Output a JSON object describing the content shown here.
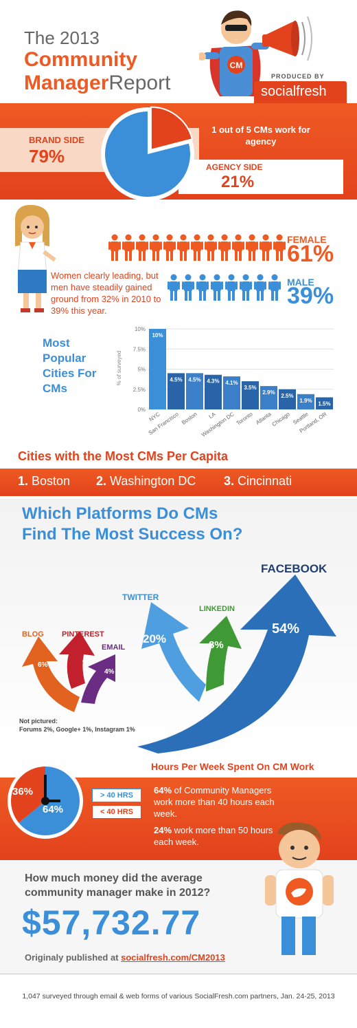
{
  "header": {
    "line1": "The 2013",
    "line2": "Community",
    "line3a": "Manager",
    "line3b": "Report",
    "produced_by": "PRODUCED BY",
    "brand": "socialfresh",
    "cape_badge": "CM"
  },
  "agency": {
    "brand_label": "BRAND SIDE",
    "brand_value": "79%",
    "note": "1 out of 5 CMs work for agency",
    "agency_label": "AGENCY SIDE",
    "agency_value": "21%"
  },
  "gender": {
    "female_label": "FEMALE",
    "female_value": "61%",
    "male_label": "MALE",
    "male_value": "39%",
    "quote": "Women clearly leading, but men have steadily gained ground from 32% in 2010 to 39% this year."
  },
  "cities_chart_title": "Most Popular Cities For CMs",
  "per_capita": {
    "title": "Cities with the Most CMs Per Capita",
    "items": [
      {
        "rank": "1.",
        "city": "Boston"
      },
      {
        "rank": "2.",
        "city": "Washington DC"
      },
      {
        "rank": "3.",
        "city": "Cincinnati"
      }
    ]
  },
  "platforms": {
    "title_line1": "Which Platforms Do CMs",
    "title_line2": "Find The Most Success On?",
    "items": [
      {
        "name": "FACEBOOK",
        "value": "54%",
        "color": "#2a6fb8"
      },
      {
        "name": "TWITTER",
        "value": "20%",
        "color": "#4f9fe0"
      },
      {
        "name": "LINKEDIN",
        "value": "8%",
        "color": "#3f9a36"
      },
      {
        "name": "BLOG",
        "value": "6%",
        "color": "#e2621f"
      },
      {
        "name": "PINTEREST",
        "value": "4%",
        "color": "#c2202c"
      },
      {
        "name": "EMAIL",
        "value": "4%",
        "color": "#6b2d83"
      }
    ],
    "not_pictured_label": "Not pictured:",
    "not_pictured": "Forums 2%, Google+ 1%, Instagram 1%"
  },
  "hours": {
    "title": "Hours Per Week Spent On CM Work",
    "pie_small": "36%",
    "pie_large": "64%",
    "legend_over": "> 40 HRS",
    "legend_under": "< 40 HRS",
    "stat1_bold": "64%",
    "stat1_rest": " of Community Managers work more than 40 hours each week.",
    "stat2_bold": "24%",
    "stat2_rest": " work more than 50 hours each week."
  },
  "salary": {
    "question": "How much money did the average community manager make in 2012?",
    "value": "$57,732.77",
    "published_prefix": "Originaly published at ",
    "published_link": "socialfresh.com/CM2013"
  },
  "footer": "1,047 surveyed through email & web forms of various SocialFresh.com partners, Jan. 24-25, 2013",
  "colors": {
    "orange": "#ef5a23",
    "blue": "#3a8fd8",
    "dark_blue": "#2a6fb8",
    "navy": "#1f3f73"
  },
  "chart_data": [
    {
      "type": "pie",
      "labels": [
        "BRAND SIDE",
        "AGENCY SIDE"
      ],
      "values": [
        79,
        21
      ]
    },
    {
      "type": "bar",
      "title": "Most Popular Cities For CMs",
      "ylabel": "% of surveyed",
      "categories": [
        "NYC",
        "San Francisco",
        "Boston",
        "LA",
        "Washington DC",
        "Toronto",
        "Atlanta",
        "Chicago",
        "Seattle",
        "Portland, OR"
      ],
      "values": [
        10,
        4.5,
        4.5,
        4.3,
        4.1,
        3.5,
        2.9,
        2.5,
        1.9,
        1.5
      ],
      "data_labels": [
        "10%",
        "4.5%",
        "4.5%",
        "4.3%",
        "4.1%",
        "3.5%",
        "2.9%",
        "2.5%",
        "1.9%",
        "1.5%"
      ],
      "ylim": [
        0,
        10
      ],
      "yticks": [
        "0%",
        "2.5%",
        "5%",
        "7.5%",
        "10%"
      ]
    },
    {
      "type": "pie",
      "labels": [
        "> 40 HRS",
        "< 40 HRS"
      ],
      "values": [
        64,
        36
      ]
    }
  ]
}
